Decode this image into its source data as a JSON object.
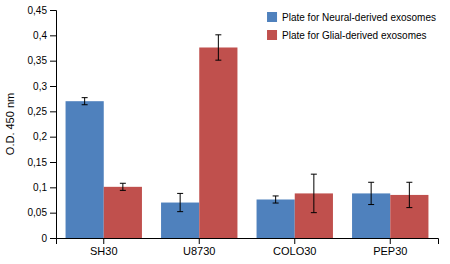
{
  "chart_data": {
    "type": "bar",
    "categories": [
      "SH30",
      "U8730",
      "COLO30",
      "PEP30"
    ],
    "series": [
      {
        "name": "Plate for Neural-derived exosomes",
        "color": "#4F81BD",
        "values": [
          0.27,
          0.07,
          0.076,
          0.088
        ],
        "errors": [
          0.007,
          0.018,
          0.007,
          0.022
        ]
      },
      {
        "name": "Plate for Glial-derived exosomes",
        "color": "#C0504D",
        "values": [
          0.101,
          0.376,
          0.088,
          0.085
        ],
        "errors": [
          0.007,
          0.025,
          0.038,
          0.025
        ]
      }
    ],
    "ylabel": "O.D. 450 nm",
    "ylim": [
      0,
      0.45
    ],
    "yticks": [
      0,
      {
        "value": 0.05,
        "label": "0,05"
      },
      {
        "value": 0.1,
        "label": "0,1"
      },
      {
        "value": 0.15,
        "label": "0,15"
      },
      {
        "value": 0.2,
        "label": "0,2"
      },
      {
        "value": 0.25,
        "label": "0,25"
      },
      {
        "value": 0.3,
        "label": "0,3"
      },
      {
        "value": 0.35,
        "label": "0,35"
      },
      {
        "value": 0.4,
        "label": "0,4"
      },
      {
        "value": 0.45,
        "label": "0,45"
      }
    ],
    "grid": false,
    "legend": "upper right"
  }
}
